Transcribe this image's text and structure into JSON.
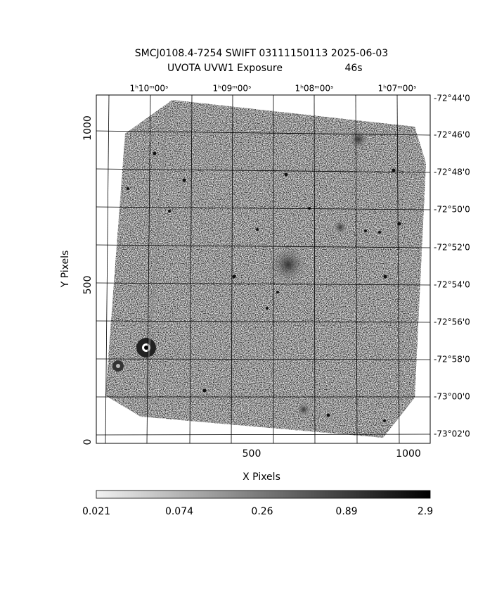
{
  "header": {
    "title": "SMCJ0108.4-7254 SWIFT 03111150113 2025-06-03",
    "subtitle": "UVOTA UVW1 Exposure",
    "exposure": "46s"
  },
  "x_axis": {
    "label": "X Pixels",
    "tick_labels": [
      "500",
      "1000"
    ]
  },
  "y_axis": {
    "label": "Y Pixels",
    "tick_labels": [
      "0",
      "500",
      "1000"
    ]
  },
  "ra_labels": [
    "1ʰ10ᵐ00ˢ",
    "1ʰ09ᵐ00ˢ",
    "1ʰ08ᵐ00ˢ",
    "1ʰ07ᵐ00ˢ"
  ],
  "dec_labels": [
    "-72°44'0",
    "-72°46'0",
    "-72°48'0",
    "-72°50'0",
    "-72°52'0",
    "-72°54'0",
    "-72°56'0",
    "-72°58'0",
    "-73°00'0",
    "-73°02'0"
  ],
  "colorbar": {
    "labels": [
      "0.021",
      "0.074",
      "0.26",
      "0.89",
      "2.9"
    ]
  }
}
